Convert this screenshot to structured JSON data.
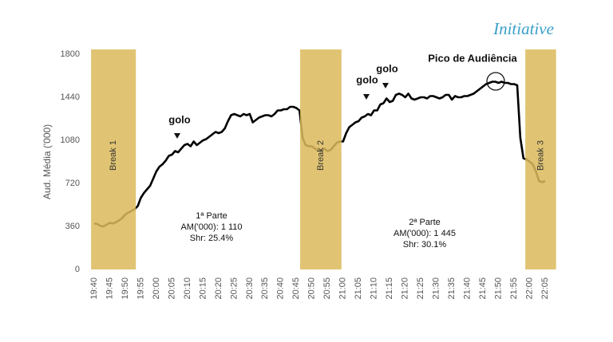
{
  "chart_data": {
    "type": "line",
    "logo": "Initiative",
    "y_label": "Aud. Média ('000)",
    "categories": [
      "19:40",
      null,
      null,
      null,
      null,
      "19:45",
      null,
      null,
      null,
      null,
      "19:50",
      null,
      null,
      null,
      null,
      "19:55",
      null,
      null,
      null,
      null,
      "20:00",
      null,
      null,
      null,
      null,
      "20:05",
      null,
      null,
      null,
      null,
      "20:10",
      null,
      null,
      null,
      null,
      "20:15",
      null,
      null,
      null,
      null,
      "20:20",
      null,
      null,
      null,
      null,
      "20:25",
      null,
      null,
      null,
      null,
      "20:30",
      null,
      null,
      null,
      null,
      "20:35",
      null,
      null,
      null,
      null,
      "20:40",
      null,
      null,
      null,
      null,
      "20:45",
      null,
      null,
      null,
      null,
      "20:50",
      null,
      null,
      null,
      null,
      "20:55",
      null,
      null,
      null,
      null,
      "21:00",
      null,
      null,
      null,
      null,
      "21:05",
      null,
      null,
      null,
      null,
      "21:10",
      null,
      null,
      null,
      null,
      "21:15",
      null,
      null,
      null,
      null,
      "21:20",
      null,
      null,
      null,
      null,
      "21:25",
      null,
      null,
      null,
      null,
      "21:30",
      null,
      null,
      null,
      null,
      "21:35",
      null,
      null,
      null,
      null,
      "21:40",
      null,
      null,
      null,
      null,
      "21:45",
      null,
      null,
      null,
      null,
      "21:50",
      null,
      null,
      null,
      null,
      "21:55",
      null,
      null,
      null,
      null,
      "22:00",
      null,
      null,
      null,
      null,
      "22:05"
    ],
    "values": [
      385,
      380,
      365,
      360,
      375,
      390,
      385,
      395,
      410,
      430,
      460,
      475,
      490,
      505,
      530,
      600,
      640,
      670,
      700,
      760,
      820,
      860,
      880,
      910,
      950,
      960,
      990,
      980,
      1010,
      1040,
      1050,
      1030,
      1070,
      1040,
      1060,
      1080,
      1090,
      1110,
      1130,
      1150,
      1140,
      1150,
      1180,
      1240,
      1290,
      1300,
      1290,
      1280,
      1300,
      1290,
      1300,
      1230,
      1250,
      1270,
      1280,
      1290,
      1290,
      1280,
      1300,
      1330,
      1330,
      1340,
      1340,
      1360,
      1360,
      1350,
      1330,
      1100,
      1040,
      1030,
      1030,
      1010,
      1000,
      990,
      1010,
      990,
      1000,
      1030,
      1060,
      1070,
      1070,
      1140,
      1190,
      1210,
      1230,
      1240,
      1270,
      1280,
      1300,
      1290,
      1330,
      1330,
      1380,
      1390,
      1430,
      1400,
      1410,
      1460,
      1470,
      1460,
      1440,
      1470,
      1430,
      1420,
      1430,
      1440,
      1440,
      1430,
      1450,
      1450,
      1440,
      1430,
      1440,
      1460,
      1460,
      1420,
      1450,
      1440,
      1440,
      1450,
      1450,
      1460,
      1470,
      1490,
      1510,
      1530,
      1550,
      1560,
      1570,
      1570,
      1560,
      1570,
      1560,
      1560,
      1550,
      1550,
      1540,
      1100,
      930,
      920,
      900,
      880,
      820,
      740,
      730,
      740
    ],
    "color": "#000000",
    "ylim": [
      0,
      1800
    ],
    "yticks": [
      0,
      360,
      720,
      1080,
      1440,
      1800
    ],
    "breaks": [
      {
        "label": "Break 1",
        "start": -1,
        "end": 13.4
      },
      {
        "label": "Break 2",
        "start": 66.2,
        "end": 79.5
      },
      {
        "label": "Break 3",
        "start": 138.6,
        "end": 148.5
      }
    ],
    "break_color": "#dcba5c",
    "annotations": [
      "golo",
      "golo",
      "golo",
      "Pico de Audiência"
    ],
    "part_notes": [
      [
        "1ª Parte",
        "AM('000): 1 110",
        "Shr:  25.4%"
      ],
      [
        "2ª Parte",
        "AM('000): 1 445",
        "Shr: 30.1%"
      ]
    ]
  }
}
